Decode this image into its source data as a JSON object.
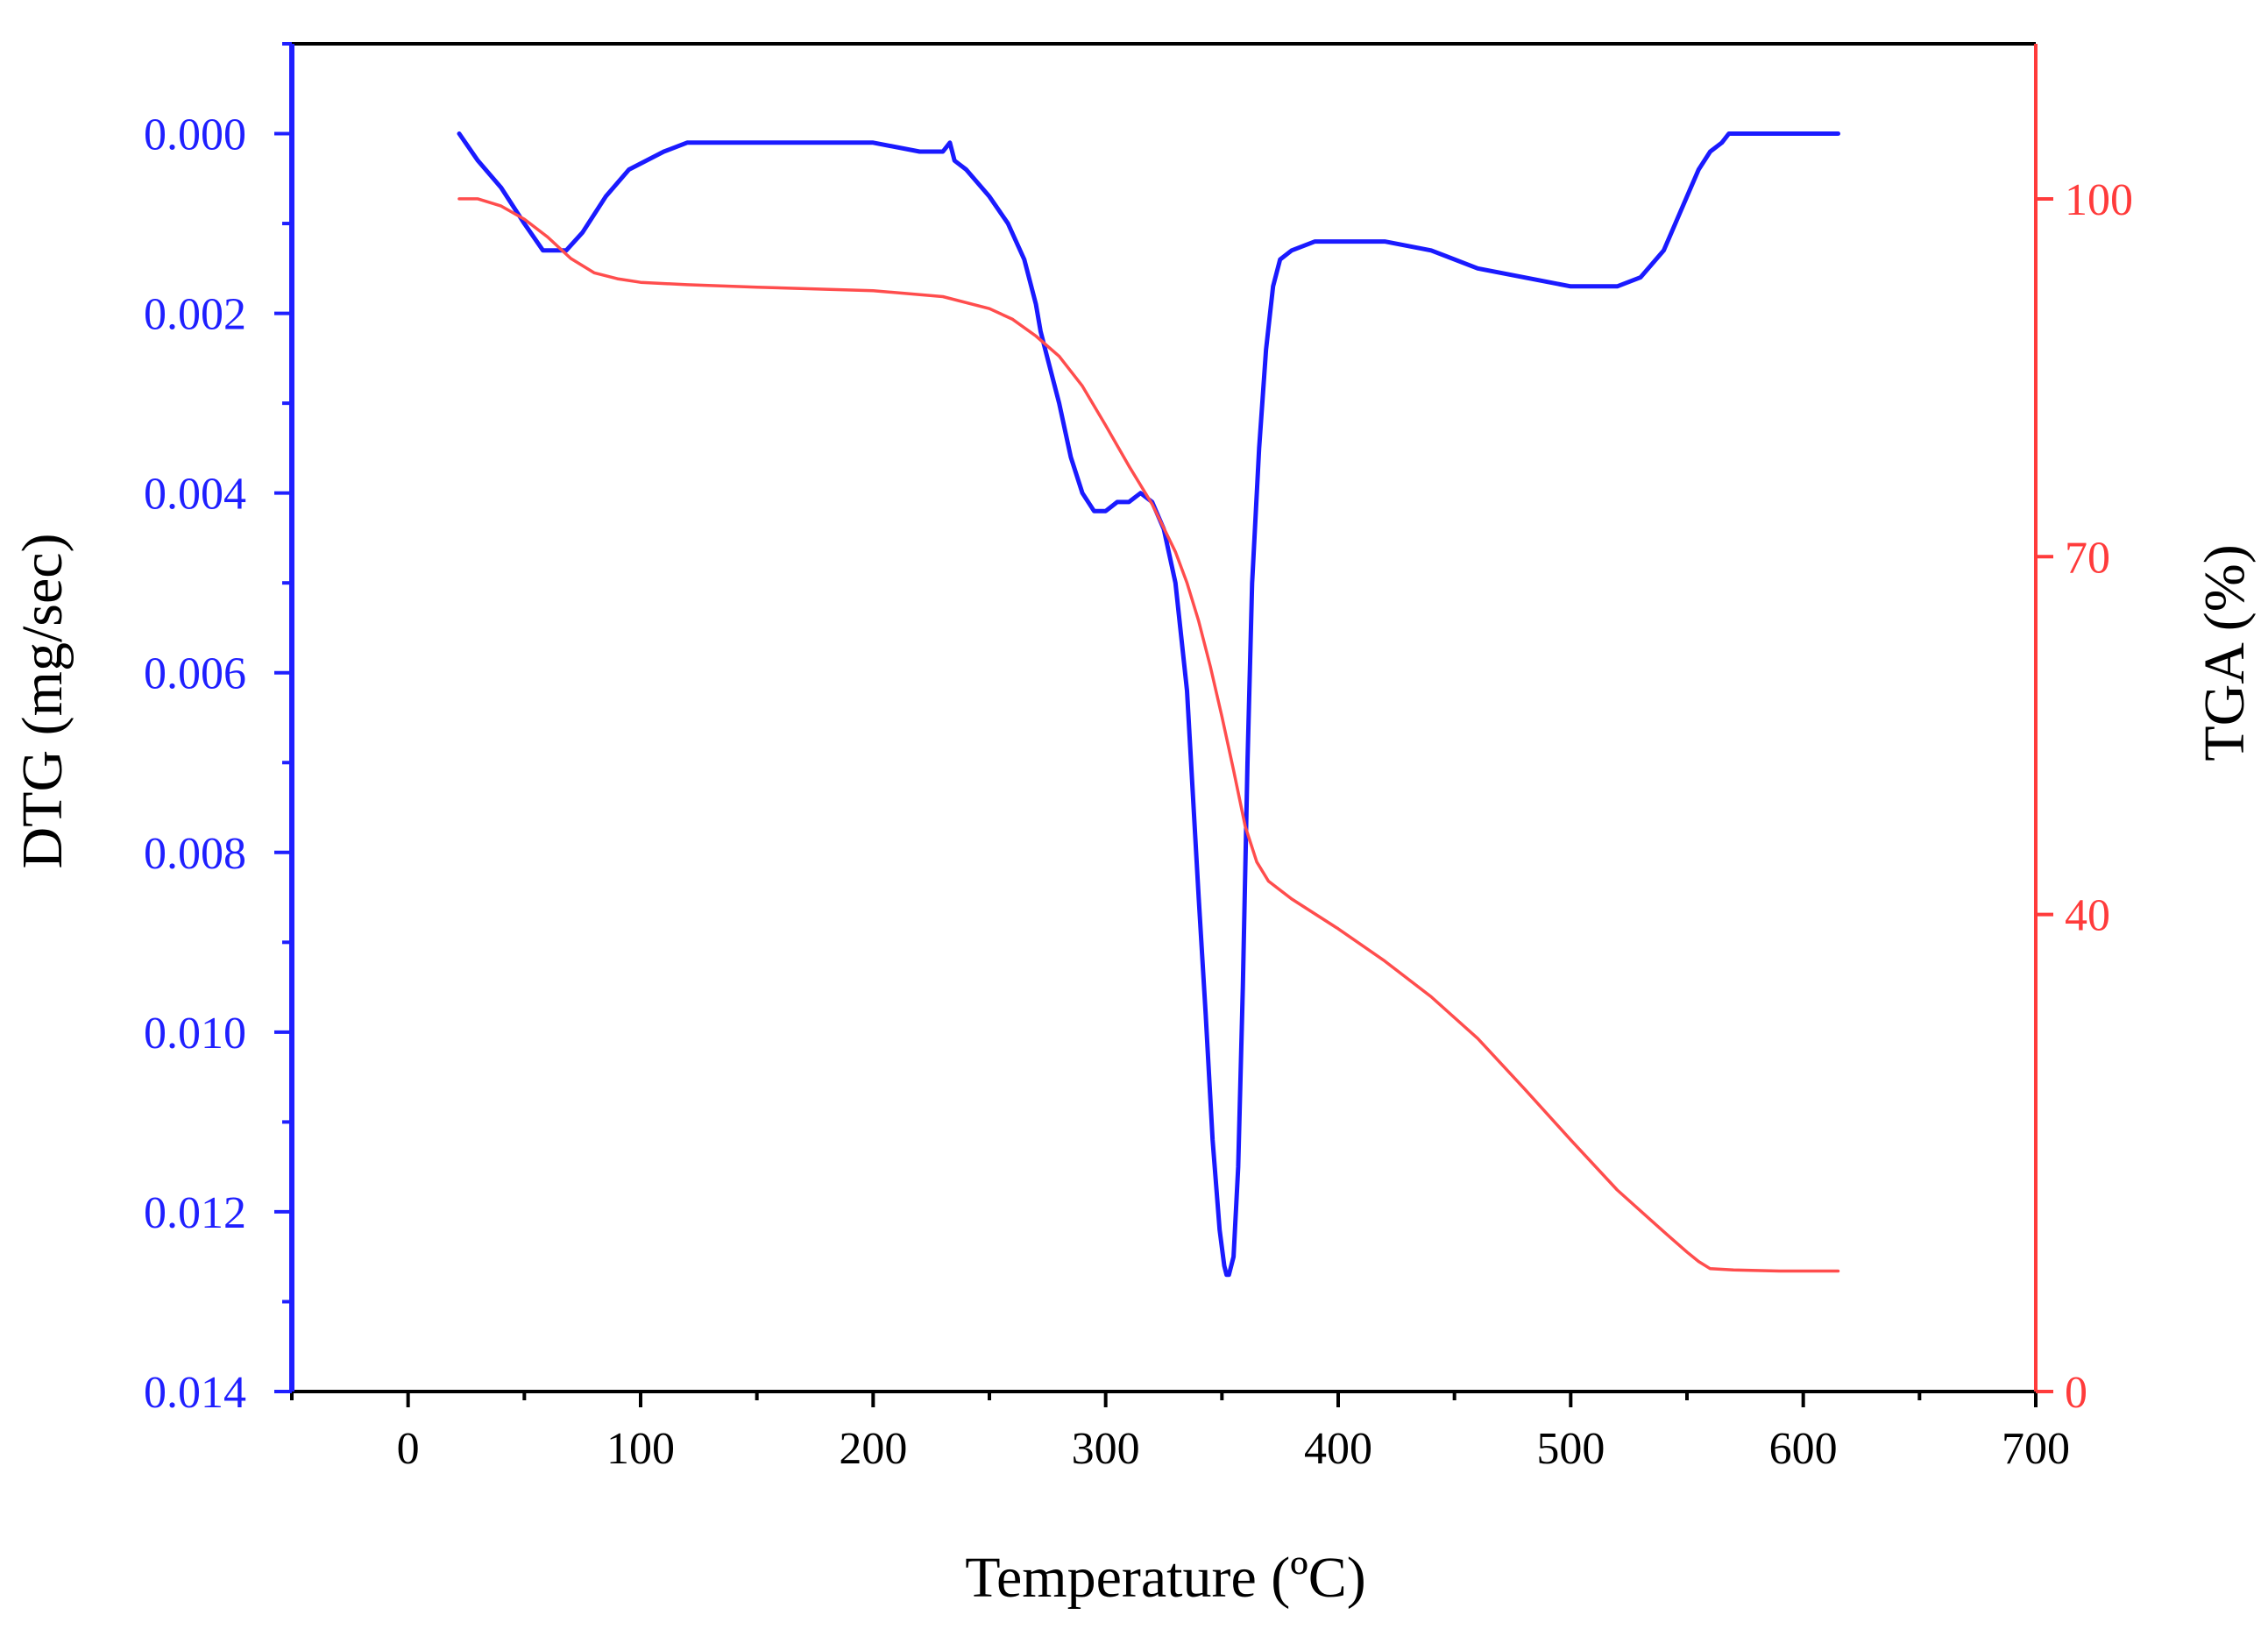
{
  "chart_data": {
    "type": "line",
    "xlabel": "Temperature (ºC)",
    "ylabel_left": "DTG (mg/sec)",
    "ylabel_right": "TGA (%)",
    "xlim": [
      -50,
      700
    ],
    "x_ticks": [
      0,
      100,
      200,
      300,
      400,
      500,
      600,
      700
    ],
    "y_left_lim": [
      -0.001,
      0.014
    ],
    "y_left_inverted": true,
    "y_left_ticks": [
      "0.000",
      "0.002",
      "0.004",
      "0.006",
      "0.008",
      "0.010",
      "0.012",
      "0.014"
    ],
    "y_right_lim": [
      0,
      113
    ],
    "y_right_ticks": [
      0,
      40,
      70,
      100
    ],
    "grid": false,
    "colors": {
      "left_axis": "#1f1fff",
      "right_axis": "#ff3b3b",
      "dtg": "#1a1aff",
      "tga": "#ff4d4d"
    },
    "series": [
      {
        "axis": "left",
        "x": [
          22,
          30,
          40,
          50,
          58,
          63,
          68,
          75,
          85,
          95,
          110,
          120,
          130,
          150,
          170,
          180,
          200,
          220,
          230,
          233,
          235,
          240,
          250,
          258,
          265,
          270,
          272,
          275,
          280,
          285,
          290,
          295,
          300,
          305,
          310,
          315,
          320,
          325,
          330,
          335,
          340,
          343,
          346,
          349,
          351,
          352,
          353,
          355,
          357,
          359,
          361,
          363,
          366,
          369,
          372,
          375,
          380,
          390,
          400,
          405,
          410,
          420,
          440,
          460,
          480,
          500,
          510,
          520,
          530,
          540,
          545,
          550,
          555,
          560,
          565,
          568,
          570,
          580,
          600,
          615
        ],
        "y": [
          0.0,
          0.0003,
          0.0006,
          0.001,
          0.0013,
          0.0013,
          0.0013,
          0.0011,
          0.0007,
          0.0004,
          0.0002,
          0.0001,
          0.0001,
          0.0001,
          0.0001,
          0.0001,
          0.0001,
          0.0002,
          0.0002,
          0.0001,
          0.0003,
          0.0004,
          0.0007,
          0.001,
          0.0014,
          0.0019,
          0.0022,
          0.0025,
          0.003,
          0.0036,
          0.004,
          0.0042,
          0.0042,
          0.0041,
          0.0041,
          0.004,
          0.0041,
          0.0044,
          0.005,
          0.0062,
          0.0085,
          0.0098,
          0.0112,
          0.0122,
          0.0126,
          0.0127,
          0.0127,
          0.0125,
          0.0115,
          0.0095,
          0.007,
          0.005,
          0.0035,
          0.0024,
          0.0017,
          0.0014,
          0.0013,
          0.0012,
          0.0012,
          0.0012,
          0.0012,
          0.0012,
          0.0013,
          0.0015,
          0.0016,
          0.0017,
          0.0017,
          0.0017,
          0.0016,
          0.0013,
          0.001,
          0.0007,
          0.0004,
          0.0002,
          0.0001,
          0.0,
          0.0,
          0.0,
          0.0,
          0.0
        ]
      },
      {
        "axis": "right",
        "x": [
          22,
          30,
          40,
          50,
          60,
          70,
          80,
          90,
          100,
          120,
          150,
          200,
          230,
          250,
          260,
          270,
          280,
          290,
          300,
          310,
          320,
          330,
          335,
          340,
          345,
          350,
          355,
          360,
          365,
          370,
          380,
          400,
          420,
          440,
          460,
          480,
          500,
          520,
          540,
          550,
          555,
          560,
          570,
          590,
          615
        ],
        "y": [
          100.0,
          100.0,
          99.4,
          98.3,
          96.8,
          95.0,
          93.8,
          93.3,
          93.0,
          92.8,
          92.6,
          92.3,
          91.8,
          90.8,
          89.9,
          88.5,
          86.8,
          84.3,
          81.0,
          77.6,
          74.4,
          70.4,
          67.8,
          64.6,
          60.8,
          56.6,
          52.1,
          47.4,
          44.4,
          42.8,
          41.3,
          38.8,
          36.1,
          33.1,
          29.6,
          25.4,
          21.1,
          16.9,
          13.4,
          11.7,
          10.9,
          10.3,
          10.2,
          10.1,
          10.1
        ]
      }
    ]
  }
}
